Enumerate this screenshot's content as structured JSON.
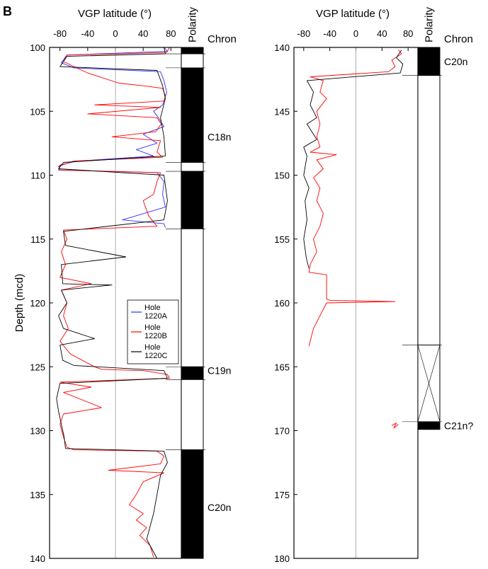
{
  "figure": {
    "panel_label": "B"
  },
  "colors": {
    "hole_a": "#3030ff",
    "hole_b": "#ff0000",
    "hole_c": "#000000",
    "zero_line": "#9a9a9a"
  },
  "chart_data": [
    {
      "type": "line",
      "xlabel": "VGP latitude (°)",
      "ylabel": "Depth (mcd)",
      "polarity_label": "Polarity",
      "chron_label": "Chron",
      "xlim": [
        -95,
        95
      ],
      "ylim": [
        100,
        140
      ],
      "xticks": [
        -80,
        -40,
        0,
        40,
        80
      ],
      "yticks": [
        100,
        105,
        110,
        115,
        120,
        125,
        130,
        135,
        140
      ],
      "legend": {
        "placement": "right-middle",
        "entries": [
          "Hole 1220A",
          "Hole 1220B",
          "Hole 1220C"
        ]
      },
      "polarity": [
        {
          "top": 100.0,
          "bottom": 100.5,
          "state": "normal"
        },
        {
          "top": 100.5,
          "bottom": 101.6,
          "state": "reversed"
        },
        {
          "top": 101.6,
          "bottom": 109.0,
          "state": "normal"
        },
        {
          "top": 109.0,
          "bottom": 109.7,
          "state": "reversed"
        },
        {
          "top": 109.7,
          "bottom": 114.2,
          "state": "normal"
        },
        {
          "top": 114.2,
          "bottom": 125.0,
          "state": "reversed"
        },
        {
          "top": 125.0,
          "bottom": 126.0,
          "state": "normal"
        },
        {
          "top": 126.0,
          "bottom": 131.5,
          "state": "reversed"
        },
        {
          "top": 131.5,
          "bottom": 140.0,
          "state": "normal"
        }
      ],
      "chrons": [
        {
          "label": "C18n",
          "depth": 107.0
        },
        {
          "label": "C19n",
          "depth": 125.3
        },
        {
          "label": "C20n",
          "depth": 136.0
        }
      ],
      "series": [
        {
          "name": "Hole 1220A",
          "points": [
            [
              70,
              100.0
            ],
            [
              75,
              100.3
            ],
            [
              -70,
              100.6
            ],
            [
              -78,
              101.2
            ],
            [
              -60,
              101.6
            ],
            [
              65,
              101.9
            ],
            [
              70,
              102.6
            ],
            [
              74,
              103.5
            ],
            [
              68,
              104.5
            ],
            [
              55,
              105.0
            ],
            [
              62,
              105.5
            ],
            [
              70,
              106.2
            ],
            [
              40,
              106.8
            ],
            [
              60,
              107.5
            ],
            [
              30,
              108.0
            ],
            [
              55,
              108.5
            ],
            [
              -55,
              108.9
            ],
            [
              -80,
              109.2
            ],
            [
              -82,
              109.6
            ],
            [
              60,
              109.8
            ],
            [
              70,
              110.5
            ],
            [
              68,
              111.5
            ],
            [
              72,
              112.5
            ],
            [
              10,
              113.5
            ],
            [
              70,
              113.8
            ],
            [
              72,
              114.1
            ]
          ]
        },
        {
          "name": "Hole 1220B",
          "points": [
            [
              78,
              100.0
            ],
            [
              74,
              100.4
            ],
            [
              -70,
              100.6
            ],
            [
              -75,
              101.1
            ],
            [
              -60,
              101.5
            ],
            [
              -40,
              102.0
            ],
            [
              5,
              102.8
            ],
            [
              40,
              103.0
            ],
            [
              68,
              103.2
            ],
            [
              72,
              103.8
            ],
            [
              70,
              104.2
            ],
            [
              -30,
              104.5
            ],
            [
              65,
              104.7
            ],
            [
              -40,
              105.2
            ],
            [
              60,
              105.5
            ],
            [
              66,
              106.0
            ],
            [
              58,
              106.6
            ],
            [
              -5,
              107.0
            ],
            [
              65,
              107.3
            ],
            [
              60,
              108.2
            ],
            [
              68,
              108.6
            ],
            [
              -60,
              108.9
            ],
            [
              -82,
              109.3
            ],
            [
              -80,
              109.6
            ],
            [
              65,
              109.8
            ],
            [
              60,
              110.5
            ],
            [
              55,
              111.5
            ],
            [
              40,
              112.0
            ],
            [
              48,
              113.2
            ],
            [
              60,
              114.0
            ],
            [
              -75,
              114.3
            ],
            [
              -70,
              115.0
            ],
            [
              -78,
              116.0
            ],
            [
              -72,
              117.0
            ],
            [
              -80,
              118.0
            ],
            [
              -35,
              118.5
            ],
            [
              -78,
              119.0
            ],
            [
              -70,
              120.0
            ],
            [
              -75,
              121.0
            ],
            [
              -68,
              122.0
            ],
            [
              -80,
              123.0
            ],
            [
              -65,
              124.0
            ],
            [
              -30,
              125.0
            ],
            [
              -20,
              125.2
            ],
            [
              40,
              125.3
            ],
            [
              75,
              125.6
            ],
            [
              78,
              125.9
            ],
            [
              -80,
              126.2
            ],
            [
              -35,
              126.6
            ],
            [
              -75,
              127.0
            ],
            [
              -20,
              128.2
            ],
            [
              -75,
              128.7
            ],
            [
              -80,
              129.5
            ],
            [
              -75,
              130.5
            ],
            [
              -70,
              131.3
            ],
            [
              -60,
              131.5
            ],
            [
              60,
              131.6
            ],
            [
              70,
              132.0
            ],
            [
              65,
              132.6
            ],
            [
              -10,
              133.1
            ],
            [
              70,
              133.3
            ],
            [
              40,
              134.0
            ],
            [
              30,
              135.0
            ],
            [
              20,
              135.8
            ],
            [
              40,
              136.5
            ],
            [
              30,
              137.0
            ],
            [
              45,
              137.6
            ],
            [
              35,
              138.2
            ],
            [
              50,
              139.0
            ],
            [
              55,
              139.9
            ]
          ]
        },
        {
          "name": "Hole 1220C",
          "points": [
            [
              70,
              100.0
            ],
            [
              72,
              100.5
            ],
            [
              -70,
              100.7
            ],
            [
              -80,
              101.5
            ],
            [
              60,
              101.8
            ],
            [
              68,
              103.0
            ],
            [
              72,
              104.0
            ],
            [
              65,
              105.5
            ],
            [
              70,
              107.0
            ],
            [
              72,
              108.5
            ],
            [
              -75,
              109.0
            ],
            [
              -82,
              109.5
            ],
            [
              70,
              110.0
            ],
            [
              75,
              112.0
            ],
            [
              70,
              113.5
            ],
            [
              -75,
              114.4
            ],
            [
              -72,
              115.5
            ],
            [
              15,
              116.4
            ],
            [
              -78,
              117.0
            ],
            [
              -76,
              118.5
            ],
            [
              -5,
              118.6
            ],
            [
              -78,
              119.0
            ],
            [
              -70,
              120.0
            ],
            [
              -82,
              121.0
            ],
            [
              -75,
              122.0
            ],
            [
              -30,
              122.8
            ],
            [
              -80,
              123.3
            ],
            [
              -76,
              124.5
            ],
            [
              -60,
              124.9
            ],
            [
              70,
              125.3
            ],
            [
              75,
              125.9
            ],
            [
              -80,
              126.3
            ],
            [
              -85,
              127.5
            ],
            [
              -82,
              128.5
            ],
            [
              -78,
              129.5
            ],
            [
              -74,
              130.5
            ],
            [
              -72,
              131.4
            ],
            [
              70,
              131.6
            ],
            [
              75,
              132.5
            ],
            [
              65,
              133.5
            ],
            [
              60,
              135.0
            ],
            [
              55,
              136.5
            ],
            [
              50,
              137.5
            ],
            [
              45,
              138.5
            ],
            [
              55,
              139.5
            ],
            [
              60,
              140.0
            ]
          ]
        }
      ]
    },
    {
      "type": "line",
      "xlabel": "VGP latitude (°)",
      "polarity_label": "Polarity",
      "chron_label": "Chron",
      "xlim": [
        -95,
        95
      ],
      "ylim": [
        140,
        180
      ],
      "xticks": [
        -80,
        -40,
        0,
        40,
        80
      ],
      "yticks": [
        140,
        145,
        150,
        155,
        160,
        165,
        170,
        175,
        180
      ],
      "polarity": [
        {
          "top": 140.0,
          "bottom": 142.2,
          "state": "normal"
        },
        {
          "top": 142.2,
          "bottom": 163.3,
          "state": "reversed"
        },
        {
          "top": 163.3,
          "bottom": 169.3,
          "state": "uncertain"
        },
        {
          "top": 169.3,
          "bottom": 169.9,
          "state": "normal"
        }
      ],
      "chrons": [
        {
          "label": "C20n",
          "depth": 141.1
        },
        {
          "label": "C21n?",
          "depth": 169.6
        }
      ],
      "series": [
        {
          "name": "Hole 1220B",
          "points": [
            [
              65,
              140.2
            ],
            [
              70,
              140.5
            ],
            [
              55,
              141.0
            ],
            [
              60,
              141.5
            ],
            [
              50,
              141.9
            ],
            [
              -70,
              142.3
            ],
            [
              -50,
              142.6
            ],
            [
              -55,
              143.5
            ],
            [
              -45,
              144.0
            ],
            [
              -60,
              145.0
            ],
            [
              -55,
              146.0
            ],
            [
              -60,
              147.0
            ],
            [
              -55,
              147.8
            ],
            [
              -70,
              148.2
            ],
            [
              -30,
              148.4
            ],
            [
              -60,
              148.8
            ],
            [
              -50,
              149.5
            ],
            [
              -65,
              150.2
            ],
            [
              -55,
              151.0
            ],
            [
              -60,
              152.0
            ],
            [
              -50,
              153.0
            ],
            [
              -55,
              154.0
            ],
            [
              -65,
              155.0
            ],
            [
              -60,
              156.0
            ],
            [
              -70,
              157.0
            ],
            [
              -72,
              157.6
            ],
            [
              -45,
              157.8
            ],
            [
              -45,
              159.7
            ],
            [
              -40,
              159.8
            ],
            [
              60,
              159.9
            ],
            [
              -45,
              160.0
            ],
            [
              -55,
              161.0
            ],
            [
              -65,
              162.0
            ],
            [
              -70,
              163.0
            ],
            [
              -72,
              163.4
            ]
          ]
        },
        {
          "name": "Hole 1220B",
          "points": [
            [
              55,
              169.6
            ],
            [
              62,
              169.4
            ],
            [
              58,
              169.8
            ],
            [
              65,
              169.5
            ]
          ]
        },
        {
          "name": "Hole 1220C",
          "points": [
            [
              70,
              140.2
            ],
            [
              62,
              140.8
            ],
            [
              72,
              141.3
            ],
            [
              68,
              142.0
            ],
            [
              -75,
              142.6
            ],
            [
              -65,
              143.5
            ],
            [
              -70,
              144.5
            ],
            [
              -60,
              145.5
            ],
            [
              -75,
              146.0
            ],
            [
              -60,
              147.2
            ],
            [
              -80,
              147.8
            ],
            [
              -75,
              148.5
            ],
            [
              -80,
              150.0
            ],
            [
              -72,
              151.0
            ],
            [
              -78,
              152.0
            ],
            [
              -75,
              153.5
            ],
            [
              -80,
              155.0
            ],
            [
              -76,
              156.5
            ],
            [
              -72,
              157.3
            ]
          ]
        }
      ]
    }
  ]
}
